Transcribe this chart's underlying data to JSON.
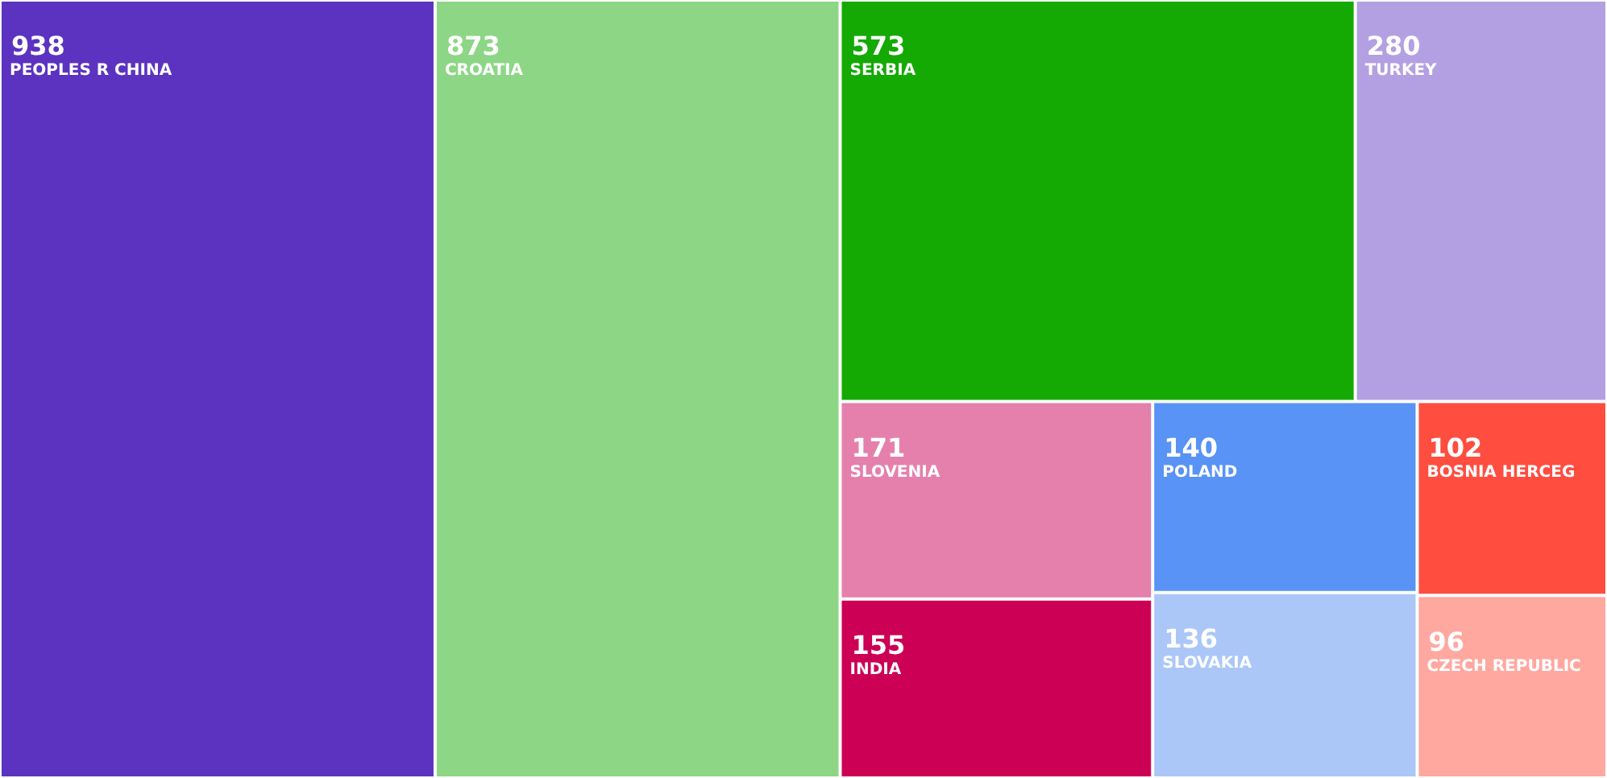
{
  "chart_data": {
    "type": "other",
    "categories": [
      "PEOPLES R CHINA",
      "CROATIA",
      "SERBIA",
      "TURKEY",
      "SLOVENIA",
      "INDIA",
      "POLAND",
      "SLOVAKIA",
      "BOSNIA HERCEG",
      "CZECH REPUBLIC"
    ],
    "values": [
      938,
      873,
      573,
      280,
      171,
      155,
      140,
      136,
      102,
      96
    ],
    "colors": [
      "#5c33c0",
      "#8dd685",
      "#14aa03",
      "#b3a0e2",
      "#e580ad",
      "#cc0055",
      "#5893f5",
      "#abc7f8",
      "#ff4d40",
      "#ffa8a0"
    ],
    "data_labels": true
  }
}
